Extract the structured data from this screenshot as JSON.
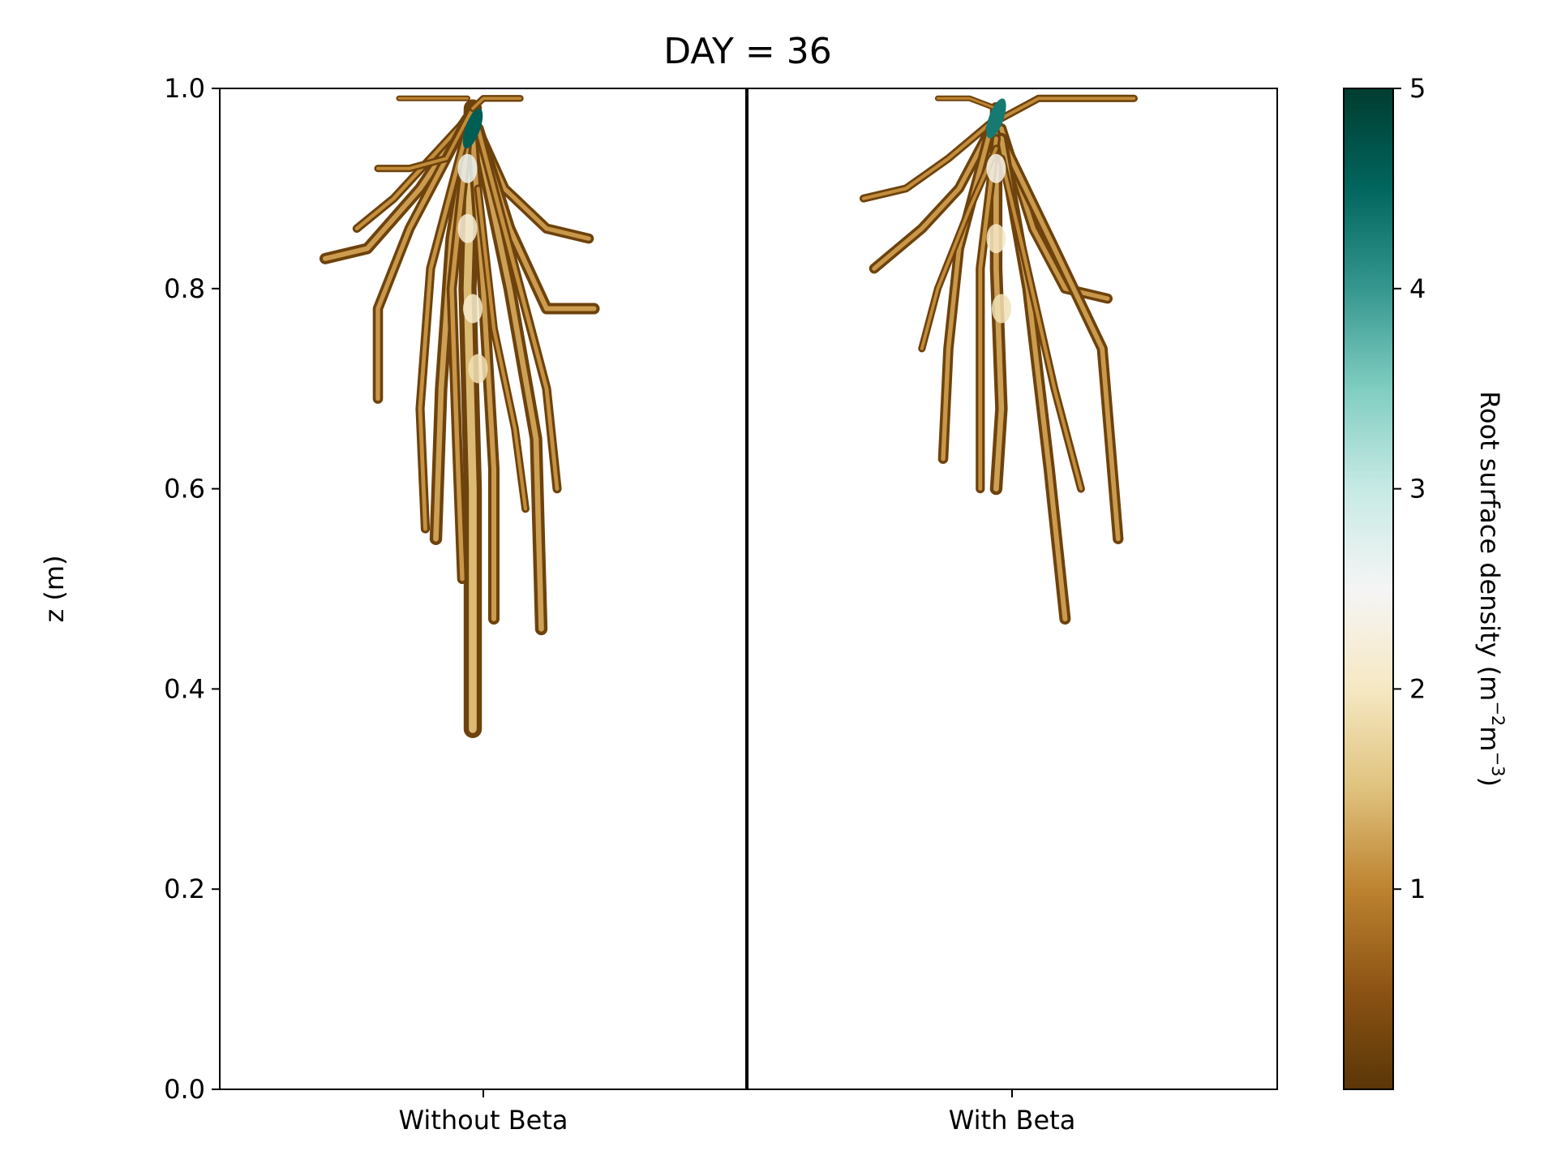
{
  "chart_data": {
    "type": "heatmap",
    "title": "DAY = 36",
    "ylabel": "z (m)",
    "ylim": [
      0.0,
      1.0
    ],
    "y_ticks": [
      "0.0",
      "0.2",
      "0.4",
      "0.6",
      "0.8",
      "1.0"
    ],
    "y_tick_values": [
      0.0,
      0.2,
      0.4,
      0.6,
      0.8,
      1.0
    ],
    "x_categories": [
      "Without Beta",
      "With Beta"
    ],
    "colorbar": {
      "label_main": "Root surface density (m",
      "label_sup1": "−2",
      "label_mid": "m",
      "label_sup2": "−3",
      "label_end": ")",
      "range": [
        0,
        5
      ],
      "ticks": [
        "1",
        "2",
        "3",
        "4",
        "5"
      ],
      "tick_values": [
        1,
        2,
        3,
        4,
        5
      ],
      "colors": [
        "#5a3607",
        "#8c5314",
        "#bd8330",
        "#dfc27d",
        "#f6e8c3",
        "#f5f5f5",
        "#c7eae5",
        "#80cdc1",
        "#35978f",
        "#01665e",
        "#003c30"
      ]
    },
    "panels": [
      {
        "name": "Without Beta",
        "z_top": 0.99,
        "min_depth_z": 0.36,
        "roots": [
          {
            "pts": [
              [
                0.48,
                0.98
              ],
              [
                0.47,
                0.8
              ],
              [
                0.48,
                0.6
              ],
              [
                0.48,
                0.45
              ],
              [
                0.48,
                0.36
              ]
            ],
            "w": 3.2
          },
          {
            "pts": [
              [
                0.48,
                0.98
              ],
              [
                0.44,
                0.85
              ],
              [
                0.42,
                0.7
              ],
              [
                0.41,
                0.55
              ]
            ],
            "w": 2.2
          },
          {
            "pts": [
              [
                0.47,
                0.97
              ],
              [
                0.38,
                0.9
              ],
              [
                0.28,
                0.84
              ],
              [
                0.2,
                0.83
              ]
            ],
            "w": 2.0
          },
          {
            "pts": [
              [
                0.47,
                0.97
              ],
              [
                0.4,
                0.93
              ],
              [
                0.33,
                0.89
              ],
              [
                0.26,
                0.86
              ]
            ],
            "w": 1.5
          },
          {
            "pts": [
              [
                0.46,
                0.96
              ],
              [
                0.36,
                0.86
              ],
              [
                0.3,
                0.78
              ],
              [
                0.3,
                0.69
              ]
            ],
            "w": 1.8
          },
          {
            "pts": [
              [
                0.48,
                0.97
              ],
              [
                0.54,
                0.9
              ],
              [
                0.62,
                0.86
              ],
              [
                0.7,
                0.85
              ]
            ],
            "w": 1.8
          },
          {
            "pts": [
              [
                0.49,
                0.96
              ],
              [
                0.55,
                0.86
              ],
              [
                0.62,
                0.78
              ],
              [
                0.71,
                0.78
              ]
            ],
            "w": 2.0
          },
          {
            "pts": [
              [
                0.49,
                0.95
              ],
              [
                0.55,
                0.8
              ],
              [
                0.6,
                0.65
              ],
              [
                0.61,
                0.46
              ]
            ],
            "w": 2.2
          },
          {
            "pts": [
              [
                0.48,
                0.95
              ],
              [
                0.5,
                0.8
              ],
              [
                0.52,
                0.62
              ],
              [
                0.52,
                0.47
              ]
            ],
            "w": 2.0
          },
          {
            "pts": [
              [
                0.47,
                0.95
              ],
              [
                0.44,
                0.8
              ],
              [
                0.45,
                0.65
              ],
              [
                0.46,
                0.51
              ]
            ],
            "w": 1.8
          },
          {
            "pts": [
              [
                0.49,
                0.96
              ],
              [
                0.56,
                0.82
              ],
              [
                0.62,
                0.7
              ],
              [
                0.64,
                0.6
              ]
            ],
            "w": 1.6
          },
          {
            "pts": [
              [
                0.47,
                0.96
              ],
              [
                0.4,
                0.82
              ],
              [
                0.38,
                0.68
              ],
              [
                0.39,
                0.56
              ]
            ],
            "w": 1.6
          },
          {
            "pts": [
              [
                0.48,
                0.98
              ],
              [
                0.43,
                0.93
              ],
              [
                0.36,
                0.92
              ],
              [
                0.3,
                0.92
              ]
            ],
            "w": 1.3
          },
          {
            "pts": [
              [
                0.48,
                0.98
              ],
              [
                0.5,
                0.99
              ],
              [
                0.57,
                0.99
              ]
            ],
            "w": 1.2
          },
          {
            "pts": [
              [
                0.47,
                0.99
              ],
              [
                0.4,
                0.99
              ],
              [
                0.34,
                0.99
              ]
            ],
            "w": 1.0
          },
          {
            "pts": [
              [
                0.49,
                0.9
              ],
              [
                0.52,
                0.76
              ],
              [
                0.56,
                0.66
              ],
              [
                0.58,
                0.58
              ]
            ],
            "w": 1.4
          }
        ],
        "hotspots": [
          {
            "z": 0.96,
            "x": 0.48,
            "v": 4.6
          },
          {
            "z": 0.92,
            "x": 0.47,
            "v": 2.6
          },
          {
            "z": 0.86,
            "x": 0.47,
            "v": 2.2
          },
          {
            "z": 0.78,
            "x": 0.48,
            "v": 2.1
          },
          {
            "z": 0.72,
            "x": 0.49,
            "v": 1.9
          }
        ]
      },
      {
        "name": "With Beta",
        "z_top": 0.99,
        "min_depth_z": 0.46,
        "roots": [
          {
            "pts": [
              [
                0.47,
                0.98
              ],
              [
                0.47,
                0.82
              ],
              [
                0.48,
                0.68
              ],
              [
                0.47,
                0.6
              ]
            ],
            "w": 2.2
          },
          {
            "pts": [
              [
                0.47,
                0.97
              ],
              [
                0.4,
                0.9
              ],
              [
                0.33,
                0.86
              ],
              [
                0.24,
                0.82
              ]
            ],
            "w": 1.8
          },
          {
            "pts": [
              [
                0.47,
                0.97
              ],
              [
                0.38,
                0.93
              ],
              [
                0.3,
                0.9
              ],
              [
                0.22,
                0.89
              ]
            ],
            "w": 1.4
          },
          {
            "pts": [
              [
                0.46,
                0.96
              ],
              [
                0.4,
                0.84
              ],
              [
                0.38,
                0.74
              ],
              [
                0.37,
                0.63
              ]
            ],
            "w": 1.8
          },
          {
            "pts": [
              [
                0.48,
                0.96
              ],
              [
                0.54,
                0.86
              ],
              [
                0.6,
                0.8
              ],
              [
                0.68,
                0.79
              ]
            ],
            "w": 1.8
          },
          {
            "pts": [
              [
                0.48,
                0.95
              ],
              [
                0.58,
                0.84
              ],
              [
                0.67,
                0.74
              ],
              [
                0.7,
                0.55
              ]
            ],
            "w": 1.9
          },
          {
            "pts": [
              [
                0.48,
                0.95
              ],
              [
                0.53,
                0.8
              ],
              [
                0.57,
                0.62
              ],
              [
                0.6,
                0.47
              ]
            ],
            "w": 2.0
          },
          {
            "pts": [
              [
                0.47,
                0.95
              ],
              [
                0.44,
                0.82
              ],
              [
                0.44,
                0.7
              ],
              [
                0.44,
                0.6
              ]
            ],
            "w": 1.6
          },
          {
            "pts": [
              [
                0.48,
                0.97
              ],
              [
                0.55,
                0.99
              ],
              [
                0.65,
                0.99
              ],
              [
                0.73,
                0.99
              ]
            ],
            "w": 1.3
          },
          {
            "pts": [
              [
                0.47,
                0.98
              ],
              [
                0.42,
                0.99
              ],
              [
                0.36,
                0.99
              ]
            ],
            "w": 1.0
          },
          {
            "pts": [
              [
                0.48,
                0.93
              ],
              [
                0.52,
                0.84
              ],
              [
                0.58,
                0.7
              ],
              [
                0.63,
                0.6
              ]
            ],
            "w": 1.4
          },
          {
            "pts": [
              [
                0.47,
                0.94
              ],
              [
                0.42,
                0.88
              ],
              [
                0.36,
                0.8
              ],
              [
                0.33,
                0.74
              ]
            ],
            "w": 1.3
          }
        ],
        "hotspots": [
          {
            "z": 0.97,
            "x": 0.47,
            "v": 4.3
          },
          {
            "z": 0.92,
            "x": 0.47,
            "v": 2.4
          },
          {
            "z": 0.85,
            "x": 0.47,
            "v": 2.0
          },
          {
            "z": 0.78,
            "x": 0.48,
            "v": 1.9
          }
        ]
      }
    ]
  }
}
